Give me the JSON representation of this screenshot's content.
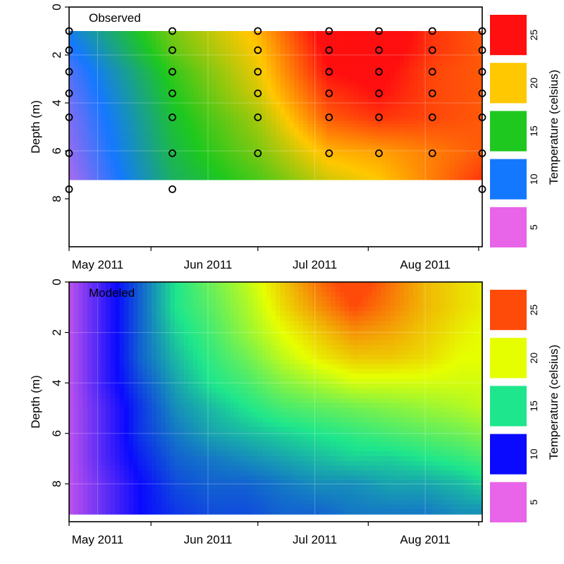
{
  "chart_data": [
    {
      "type": "heatmap",
      "panel_label": "Observed",
      "ylabel": "Depth (m)",
      "x_ticks": [
        "May 2011",
        "Jun 2011",
        "Jul 2011",
        "Aug 2011"
      ],
      "y_ticks": [
        "0",
        "2",
        "4",
        "6",
        "8"
      ],
      "ylim": [
        10,
        0
      ],
      "dates": [
        "2011-04-23",
        "2011-05-22",
        "2011-06-15",
        "2011-07-05",
        "2011-07-19",
        "2011-08-03",
        "2011-08-17"
      ],
      "depths": [
        1,
        1.8,
        2.7,
        3.6,
        4.6,
        6.1,
        7.2
      ],
      "temperature": [
        [
          10.5,
          17,
          20.5,
          26,
          26.5,
          24,
          23
        ],
        [
          9.5,
          16.5,
          20,
          25.5,
          26,
          24,
          23
        ],
        [
          8.5,
          15.5,
          19.5,
          25,
          25.5,
          23.5,
          23
        ],
        [
          8,
          15,
          19,
          24,
          25,
          23.5,
          23
        ],
        [
          7.5,
          14.5,
          18,
          23,
          24,
          23.5,
          23
        ],
        [
          7,
          14,
          17,
          20.5,
          21,
          22,
          23
        ],
        [
          6.5,
          13.5,
          16,
          19,
          20,
          22,
          24
        ]
      ],
      "sample_points": [
        {
          "date": "2011-04-23",
          "depths": [
            1,
            1.8,
            2.7,
            3.6,
            4.6,
            6.1,
            7.6
          ]
        },
        {
          "date": "2011-05-22",
          "depths": [
            1,
            1.8,
            2.7,
            3.6,
            4.6,
            6.1,
            7.6
          ]
        },
        {
          "date": "2011-06-15",
          "depths": [
            1,
            1.8,
            2.7,
            3.6,
            4.6,
            6.1
          ]
        },
        {
          "date": "2011-07-05",
          "depths": [
            1,
            1.8,
            2.7,
            3.6,
            4.6,
            6.1
          ]
        },
        {
          "date": "2011-07-19",
          "depths": [
            1,
            1.8,
            2.7,
            3.6,
            4.6,
            6.1
          ]
        },
        {
          "date": "2011-08-03",
          "depths": [
            1,
            1.8,
            2.7,
            3.6,
            4.6,
            6.1
          ]
        },
        {
          "date": "2011-08-17",
          "depths": [
            1,
            1.8,
            2.7,
            3.6,
            4.6,
            6.1,
            7.6
          ]
        }
      ],
      "colorbar": {
        "label": "Temperature (celsius)",
        "levels": [
          {
            "label": "5",
            "color": "#e864e8"
          },
          {
            "label": "10",
            "color": "#1478ff"
          },
          {
            "label": "15",
            "color": "#1ec81e"
          },
          {
            "label": "20",
            "color": "#ffc800"
          },
          {
            "label": "25",
            "color": "#ff0f0f"
          }
        ]
      },
      "legend": "none"
    },
    {
      "type": "heatmap",
      "panel_label": "Modeled",
      "ylabel": "Depth (m)",
      "x_ticks": [
        "May 2011",
        "Jun 2011",
        "Jul 2011",
        "Aug 2011"
      ],
      "y_ticks": [
        "0",
        "2",
        "4",
        "6",
        "8"
      ],
      "ylim": [
        9.5,
        0
      ],
      "dates": [
        "2011-04-23",
        "2011-05-03",
        "2011-05-13",
        "2011-05-23",
        "2011-06-02",
        "2011-06-12",
        "2011-06-22",
        "2011-07-02",
        "2011-07-12",
        "2011-07-22",
        "2011-08-01",
        "2011-08-11",
        "2011-08-17"
      ],
      "depths": [
        0,
        1,
        2,
        3,
        4,
        5,
        6,
        7,
        8,
        9.2
      ],
      "temperature": [
        [
          6,
          9,
          12,
          15,
          17,
          19,
          21.5,
          24,
          26,
          24,
          22,
          21,
          20.5
        ],
        [
          6,
          9,
          12,
          15,
          16.5,
          18.5,
          21,
          23,
          25,
          23.5,
          22,
          21,
          20.5
        ],
        [
          6,
          9,
          12,
          14.5,
          16,
          18,
          20,
          21.5,
          23,
          22.5,
          21.5,
          20.5,
          20
        ],
        [
          6,
          9,
          12,
          14,
          15.5,
          17,
          19,
          20.5,
          21.5,
          21.5,
          21,
          20,
          20
        ],
        [
          6,
          9,
          11.5,
          13.5,
          15,
          16,
          17.5,
          18.5,
          19.5,
          19.5,
          19.5,
          19.5,
          19.5
        ],
        [
          6,
          8.5,
          11,
          13,
          14,
          15,
          16,
          16.5,
          17,
          17.5,
          18,
          18.5,
          19
        ],
        [
          6,
          8.5,
          11,
          12.5,
          13.5,
          14,
          14.5,
          15,
          15.5,
          16,
          16.5,
          17,
          17.5
        ],
        [
          6,
          8.5,
          10.5,
          12,
          12.5,
          13,
          13.5,
          14,
          14.5,
          14.5,
          15,
          15.5,
          16
        ],
        [
          6,
          8,
          10,
          11.5,
          12,
          12,
          12.5,
          13,
          13,
          13.5,
          13.5,
          14,
          14.5
        ],
        [
          6,
          8,
          10,
          11,
          11.5,
          11.5,
          12,
          12,
          12.5,
          12.5,
          12.5,
          13,
          13
        ]
      ],
      "colorbar": {
        "label": "Temperature (celsius)",
        "levels": [
          {
            "label": "5",
            "color": "#e864e8"
          },
          {
            "label": "10",
            "color": "#0a0aff"
          },
          {
            "label": "15",
            "color": "#1ee68c"
          },
          {
            "label": "20",
            "color": "#e6ff00"
          },
          {
            "label": "25",
            "color": "#ff4b0a"
          }
        ]
      },
      "legend": "none"
    }
  ]
}
